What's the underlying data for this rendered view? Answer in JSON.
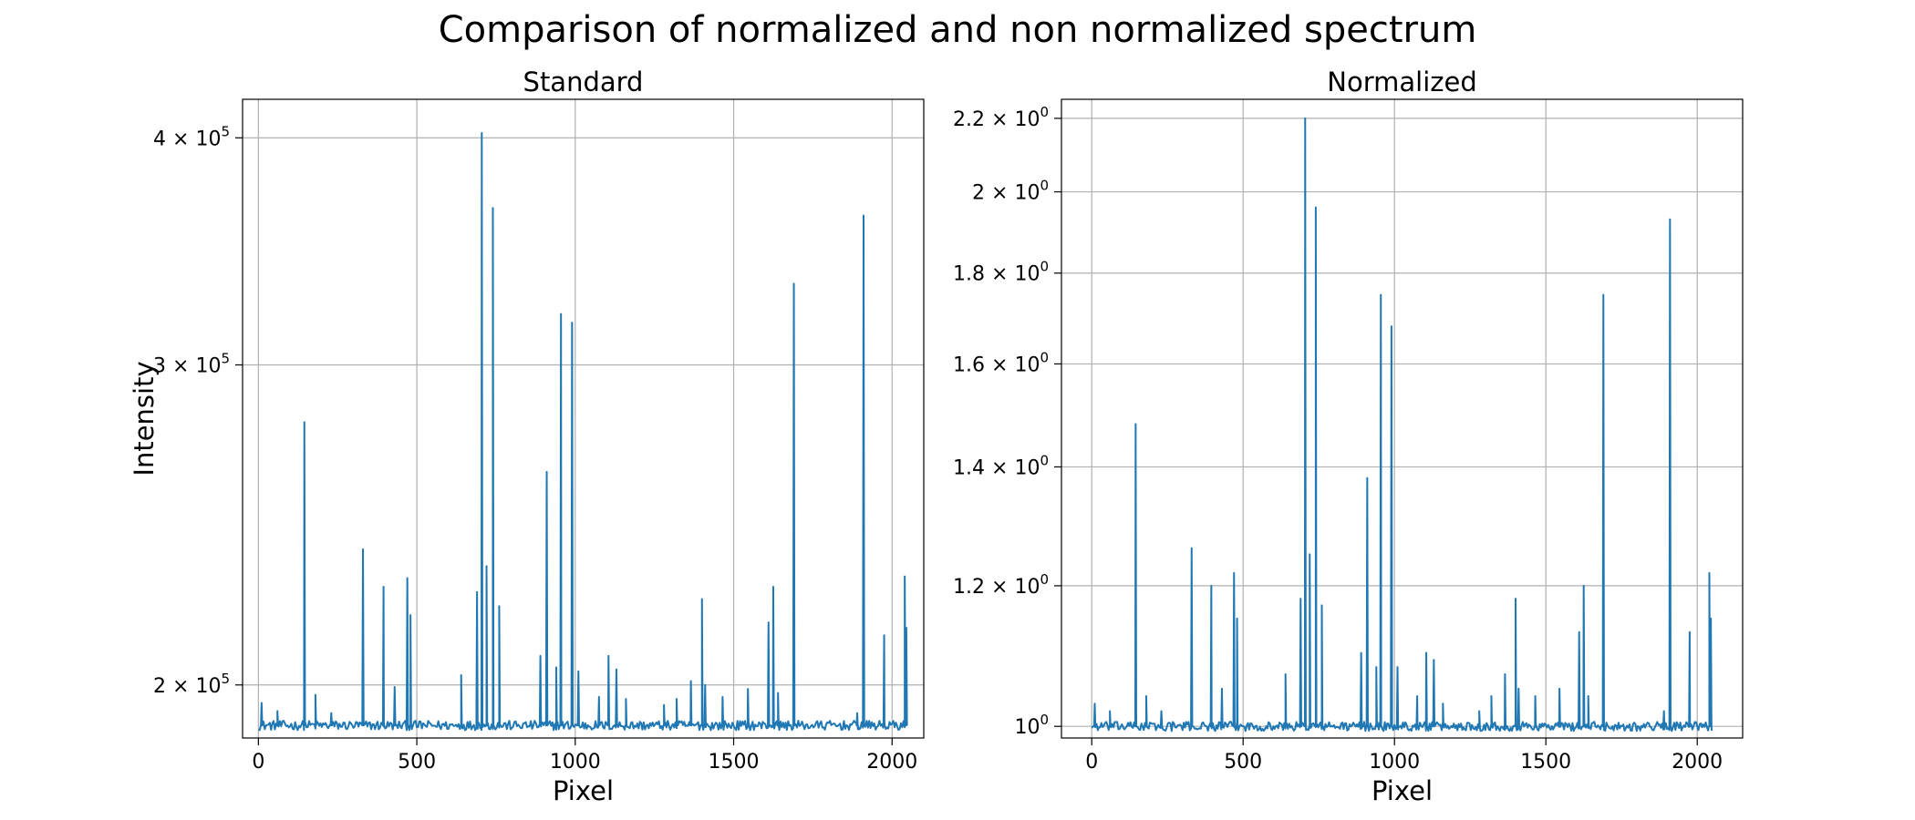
{
  "figure": {
    "title": "Comparison of normalized and non normalized spectrum"
  },
  "chart_data": [
    {
      "type": "line",
      "title": "Standard",
      "xlabel": "Pixel",
      "ylabel": "Intensity",
      "yscale": "log",
      "xlim": [
        -50,
        2100
      ],
      "ylim": [
        187000,
        420000
      ],
      "grid": true,
      "color": "#1f77b4",
      "xticks": [
        0,
        500,
        1000,
        1500,
        2000
      ],
      "yticks": [
        {
          "value": 200000,
          "mantissa": "2",
          "base": "10",
          "exp": "5"
        },
        {
          "value": 300000,
          "mantissa": "3",
          "base": "10",
          "exp": "5"
        },
        {
          "value": 400000,
          "mantissa": "4",
          "base": "10",
          "exp": "5"
        }
      ],
      "baseline": 190000,
      "peaks": [
        [
          10,
          195500
        ],
        [
          60,
          193500
        ],
        [
          145,
          279000
        ],
        [
          180,
          197500
        ],
        [
          230,
          193000
        ],
        [
          330,
          237500
        ],
        [
          395,
          226500
        ],
        [
          430,
          199500
        ],
        [
          470,
          229000
        ],
        [
          480,
          218500
        ],
        [
          640,
          202500
        ],
        [
          690,
          225000
        ],
        [
          705,
          402500
        ],
        [
          720,
          232500
        ],
        [
          740,
          366000
        ],
        [
          760,
          221000
        ],
        [
          890,
          207500
        ],
        [
          910,
          262000
        ],
        [
          940,
          204500
        ],
        [
          955,
          320000
        ],
        [
          990,
          316500
        ],
        [
          1010,
          203500
        ],
        [
          1075,
          197000
        ],
        [
          1105,
          207500
        ],
        [
          1130,
          204000
        ],
        [
          1160,
          196500
        ],
        [
          1280,
          195000
        ],
        [
          1320,
          196500
        ],
        [
          1365,
          201000
        ],
        [
          1400,
          223000
        ],
        [
          1410,
          200000
        ],
        [
          1465,
          197000
        ],
        [
          1545,
          199000
        ],
        [
          1610,
          216500
        ],
        [
          1625,
          226500
        ],
        [
          1640,
          198000
        ],
        [
          1690,
          332500
        ],
        [
          1890,
          193000
        ],
        [
          1910,
          362500
        ],
        [
          1975,
          213000
        ],
        [
          2040,
          229500
        ],
        [
          2045,
          215000
        ]
      ]
    },
    {
      "type": "line",
      "title": "Normalized",
      "xlabel": "Pixel",
      "ylabel": "",
      "yscale": "log",
      "xlim": [
        -100,
        2150
      ],
      "ylim": [
        0.985,
        2.255
      ],
      "grid": true,
      "color": "#1f77b4",
      "xticks": [
        0,
        500,
        1000,
        1500,
        2000
      ],
      "yticks": [
        {
          "value": 1.0,
          "mantissa": "",
          "base": "10",
          "exp": "0"
        },
        {
          "value": 1.2,
          "mantissa": "1.2",
          "base": "10",
          "exp": "0"
        },
        {
          "value": 1.4,
          "mantissa": "1.4",
          "base": "10",
          "exp": "0"
        },
        {
          "value": 1.6,
          "mantissa": "1.6",
          "base": "10",
          "exp": "0"
        },
        {
          "value": 1.8,
          "mantissa": "1.8",
          "base": "10",
          "exp": "0"
        },
        {
          "value": 2.0,
          "mantissa": "2",
          "base": "10",
          "exp": "0"
        },
        {
          "value": 2.2,
          "mantissa": "2.2",
          "base": "10",
          "exp": "0"
        }
      ],
      "baseline": 1.0,
      "peaks": [
        [
          10,
          1.03
        ],
        [
          60,
          1.02
        ],
        [
          145,
          1.48
        ],
        [
          180,
          1.04
        ],
        [
          230,
          1.02
        ],
        [
          330,
          1.26
        ],
        [
          395,
          1.2
        ],
        [
          430,
          1.05
        ],
        [
          470,
          1.22
        ],
        [
          480,
          1.15
        ],
        [
          640,
          1.07
        ],
        [
          690,
          1.18
        ],
        [
          705,
          2.2
        ],
        [
          720,
          1.25
        ],
        [
          740,
          1.96
        ],
        [
          760,
          1.17
        ],
        [
          890,
          1.1
        ],
        [
          910,
          1.38
        ],
        [
          940,
          1.08
        ],
        [
          955,
          1.75
        ],
        [
          990,
          1.68
        ],
        [
          1010,
          1.08
        ],
        [
          1075,
          1.04
        ],
        [
          1105,
          1.1
        ],
        [
          1130,
          1.09
        ],
        [
          1160,
          1.03
        ],
        [
          1280,
          1.02
        ],
        [
          1320,
          1.04
        ],
        [
          1365,
          1.07
        ],
        [
          1400,
          1.18
        ],
        [
          1410,
          1.05
        ],
        [
          1465,
          1.04
        ],
        [
          1545,
          1.05
        ],
        [
          1610,
          1.13
        ],
        [
          1625,
          1.2
        ],
        [
          1640,
          1.04
        ],
        [
          1690,
          1.75
        ],
        [
          1890,
          1.02
        ],
        [
          1910,
          1.93
        ],
        [
          1975,
          1.13
        ],
        [
          2040,
          1.22
        ],
        [
          2045,
          1.15
        ]
      ]
    }
  ]
}
